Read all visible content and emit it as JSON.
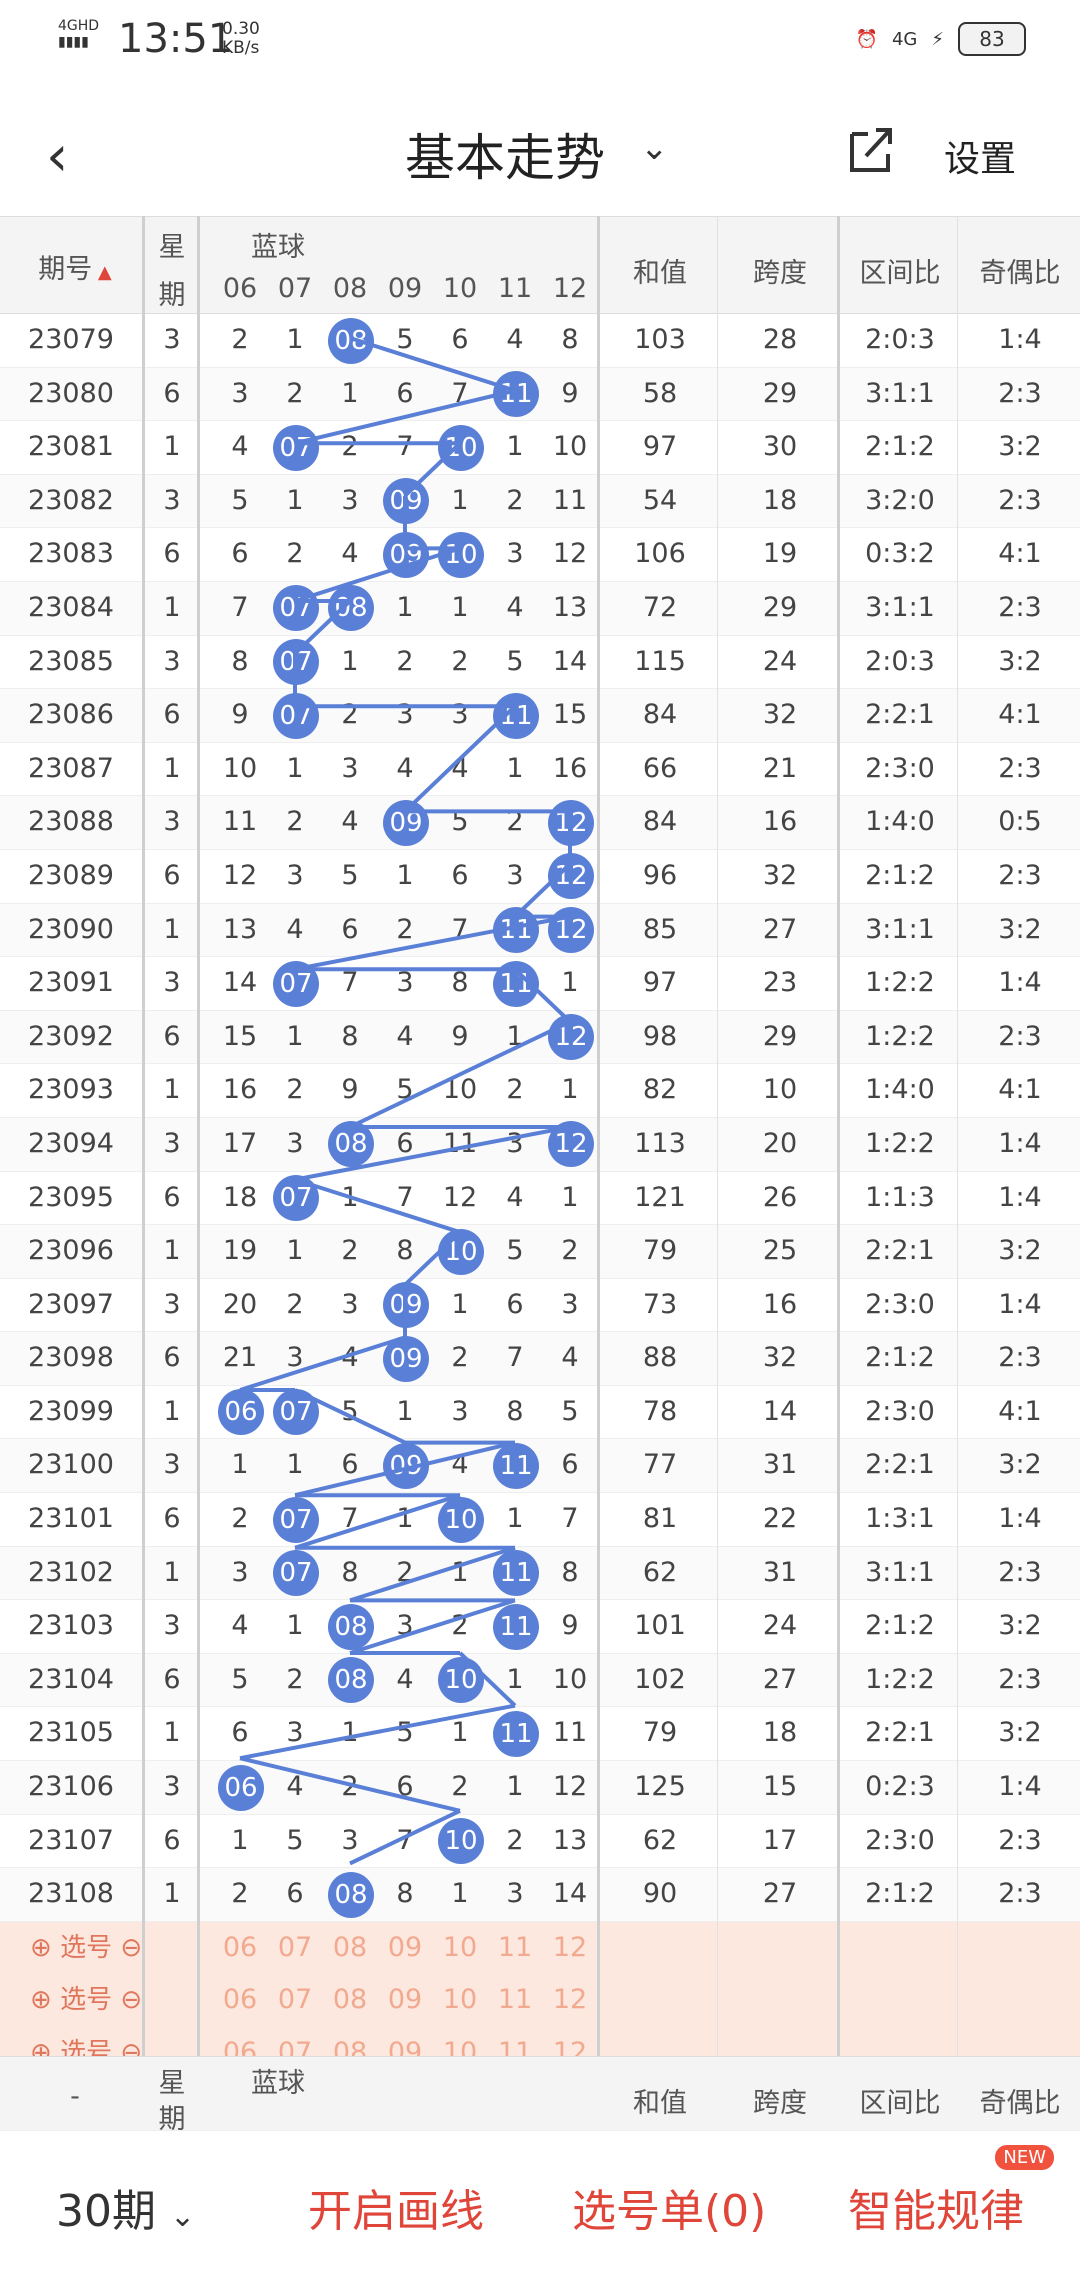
{
  "status": {
    "network": "4GHD",
    "time": "13:51",
    "speed": "0.30",
    "speed_unit": "KB/s",
    "battery": "83",
    "net2": "4G"
  },
  "header": {
    "title": "基本走势",
    "setting": "设置"
  },
  "columns": {
    "period": "期号",
    "week": [
      "星",
      "期"
    ],
    "blue": "蓝球",
    "blue_nums": [
      "06",
      "07",
      "08",
      "09",
      "10",
      "11",
      "12"
    ],
    "sum": "和值",
    "span": "跨度",
    "zone": "区间比",
    "oddeven": "奇偶比"
  },
  "rows": [
    {
      "p": "23079",
      "w": "3",
      "b": [
        "2",
        "1",
        "08",
        "5",
        "6",
        "4",
        "8"
      ],
      "hit": 2,
      "s": "103",
      "sp": "28",
      "z": "2:0:3",
      "oe": "1:4"
    },
    {
      "p": "23080",
      "w": "6",
      "b": [
        "3",
        "2",
        "1",
        "6",
        "7",
        "11",
        "9"
      ],
      "hit": 5,
      "s": "58",
      "sp": "29",
      "z": "3:1:1",
      "oe": "2:3"
    },
    {
      "p": "23081",
      "w": "1",
      "b": [
        "4",
        "07",
        "2",
        "7",
        "10",
        "1",
        "10"
      ],
      "hit": 1,
      "hit2": 4,
      "s": "97",
      "sp": "30",
      "z": "2:1:2",
      "oe": "3:2"
    },
    {
      "p": "23082",
      "w": "3",
      "b": [
        "5",
        "1",
        "3",
        "09",
        "1",
        "2",
        "11"
      ],
      "hit": 3,
      "s": "54",
      "sp": "18",
      "z": "3:2:0",
      "oe": "2:3"
    },
    {
      "p": "23083",
      "w": "6",
      "b": [
        "6",
        "2",
        "4",
        "09",
        "10",
        "3",
        "12"
      ],
      "hit": 3,
      "hit2": 4,
      "s": "106",
      "sp": "19",
      "z": "0:3:2",
      "oe": "4:1"
    },
    {
      "p": "23084",
      "w": "1",
      "b": [
        "7",
        "07",
        "08",
        "1",
        "1",
        "4",
        "13"
      ],
      "hit": 1,
      "hit2": 2,
      "s": "72",
      "sp": "29",
      "z": "3:1:1",
      "oe": "2:3"
    },
    {
      "p": "23085",
      "w": "3",
      "b": [
        "8",
        "07",
        "1",
        "2",
        "2",
        "5",
        "14"
      ],
      "hit": 1,
      "s": "115",
      "sp": "24",
      "z": "2:0:3",
      "oe": "3:2"
    },
    {
      "p": "23086",
      "w": "6",
      "b": [
        "9",
        "07",
        "2",
        "3",
        "3",
        "11",
        "15"
      ],
      "hit": 1,
      "hit2": 5,
      "s": "84",
      "sp": "32",
      "z": "2:2:1",
      "oe": "4:1"
    },
    {
      "p": "23087",
      "w": "1",
      "b": [
        "10",
        "1",
        "3",
        "4",
        "4",
        "1",
        "16"
      ],
      "hit": -1,
      "s": "66",
      "sp": "21",
      "z": "2:3:0",
      "oe": "2:3"
    },
    {
      "p": "23088",
      "w": "3",
      "b": [
        "11",
        "2",
        "4",
        "09",
        "5",
        "2",
        "12"
      ],
      "hit": 3,
      "hit2": 6,
      "s": "84",
      "sp": "16",
      "z": "1:4:0",
      "oe": "0:5"
    },
    {
      "p": "23089",
      "w": "6",
      "b": [
        "12",
        "3",
        "5",
        "1",
        "6",
        "3",
        "12"
      ],
      "hit": 6,
      "s": "96",
      "sp": "32",
      "z": "2:1:2",
      "oe": "2:3"
    },
    {
      "p": "23090",
      "w": "1",
      "b": [
        "13",
        "4",
        "6",
        "2",
        "7",
        "11",
        "12"
      ],
      "hit": 5,
      "hit2": 6,
      "s": "85",
      "sp": "27",
      "z": "3:1:1",
      "oe": "3:2"
    },
    {
      "p": "23091",
      "w": "3",
      "b": [
        "14",
        "07",
        "7",
        "3",
        "8",
        "11",
        "1"
      ],
      "hit": 1,
      "hit2": 5,
      "s": "97",
      "sp": "23",
      "z": "1:2:2",
      "oe": "1:4"
    },
    {
      "p": "23092",
      "w": "6",
      "b": [
        "15",
        "1",
        "8",
        "4",
        "9",
        "1",
        "12"
      ],
      "hit": 6,
      "s": "98",
      "sp": "29",
      "z": "1:2:2",
      "oe": "2:3"
    },
    {
      "p": "23093",
      "w": "1",
      "b": [
        "16",
        "2",
        "9",
        "5",
        "10",
        "2",
        "1"
      ],
      "hit": -1,
      "s": "82",
      "sp": "10",
      "z": "1:4:0",
      "oe": "4:1"
    },
    {
      "p": "23094",
      "w": "3",
      "b": [
        "17",
        "3",
        "08",
        "6",
        "11",
        "3",
        "12"
      ],
      "hit": 2,
      "hit2": 6,
      "s": "113",
      "sp": "20",
      "z": "1:2:2",
      "oe": "1:4"
    },
    {
      "p": "23095",
      "w": "6",
      "b": [
        "18",
        "07",
        "1",
        "7",
        "12",
        "4",
        "1"
      ],
      "hit": 1,
      "s": "121",
      "sp": "26",
      "z": "1:1:3",
      "oe": "1:4"
    },
    {
      "p": "23096",
      "w": "1",
      "b": [
        "19",
        "1",
        "2",
        "8",
        "10",
        "5",
        "2"
      ],
      "hit": 4,
      "s": "79",
      "sp": "25",
      "z": "2:2:1",
      "oe": "3:2"
    },
    {
      "p": "23097",
      "w": "3",
      "b": [
        "20",
        "2",
        "3",
        "09",
        "1",
        "6",
        "3"
      ],
      "hit": 3,
      "s": "73",
      "sp": "16",
      "z": "2:3:0",
      "oe": "1:4"
    },
    {
      "p": "23098",
      "w": "6",
      "b": [
        "21",
        "3",
        "4",
        "09",
        "2",
        "7",
        "4"
      ],
      "hit": 3,
      "s": "88",
      "sp": "32",
      "z": "2:1:2",
      "oe": "2:3"
    },
    {
      "p": "23099",
      "w": "1",
      "b": [
        "06",
        "07",
        "5",
        "1",
        "3",
        "8",
        "5"
      ],
      "hit": 0,
      "hit2": 1,
      "s": "78",
      "sp": "14",
      "z": "2:3:0",
      "oe": "4:1"
    },
    {
      "p": "23100",
      "w": "3",
      "b": [
        "1",
        "1",
        "6",
        "09",
        "4",
        "11",
        "6"
      ],
      "hit": 3,
      "hit2": 5,
      "s": "77",
      "sp": "31",
      "z": "2:2:1",
      "oe": "3:2"
    },
    {
      "p": "23101",
      "w": "6",
      "b": [
        "2",
        "07",
        "7",
        "1",
        "10",
        "1",
        "7"
      ],
      "hit": 1,
      "hit2": 4,
      "s": "81",
      "sp": "22",
      "z": "1:3:1",
      "oe": "1:4"
    },
    {
      "p": "23102",
      "w": "1",
      "b": [
        "3",
        "07",
        "8",
        "2",
        "1",
        "11",
        "8"
      ],
      "hit": 1,
      "hit2": 5,
      "s": "62",
      "sp": "31",
      "z": "3:1:1",
      "oe": "2:3"
    },
    {
      "p": "23103",
      "w": "3",
      "b": [
        "4",
        "1",
        "08",
        "3",
        "2",
        "11",
        "9"
      ],
      "hit": 2,
      "hit2": 5,
      "s": "101",
      "sp": "24",
      "z": "2:1:2",
      "oe": "3:2"
    },
    {
      "p": "23104",
      "w": "6",
      "b": [
        "5",
        "2",
        "08",
        "4",
        "10",
        "1",
        "10"
      ],
      "hit": 2,
      "hit2": 4,
      "s": "102",
      "sp": "27",
      "z": "1:2:2",
      "oe": "2:3"
    },
    {
      "p": "23105",
      "w": "1",
      "b": [
        "6",
        "3",
        "1",
        "5",
        "1",
        "11",
        "11"
      ],
      "hit": 5,
      "s": "79",
      "sp": "18",
      "z": "2:2:1",
      "oe": "3:2"
    },
    {
      "p": "23106",
      "w": "3",
      "b": [
        "06",
        "4",
        "2",
        "6",
        "2",
        "1",
        "12"
      ],
      "hit": 0,
      "s": "125",
      "sp": "15",
      "z": "0:2:3",
      "oe": "1:4"
    },
    {
      "p": "23107",
      "w": "6",
      "b": [
        "1",
        "5",
        "3",
        "7",
        "10",
        "2",
        "13"
      ],
      "hit": 4,
      "s": "62",
      "sp": "17",
      "z": "2:3:0",
      "oe": "2:3"
    },
    {
      "p": "23108",
      "w": "1",
      "b": [
        "2",
        "6",
        "08",
        "8",
        "1",
        "3",
        "14"
      ],
      "hit": 2,
      "s": "90",
      "sp": "27",
      "z": "2:1:2",
      "oe": "2:3"
    }
  ],
  "select": {
    "label": "选号",
    "nums": [
      "06",
      "07",
      "08",
      "09",
      "10",
      "11",
      "12"
    ]
  },
  "footer_head": {
    "period": "-",
    "week": [
      "星",
      "期"
    ],
    "blue": "蓝球",
    "sum": "和值",
    "span": "跨度",
    "zone": "区间比",
    "oddeven": "奇偶比"
  },
  "bottom": {
    "periods": "30期",
    "draw": "开启画线",
    "list": "选号单(0)",
    "smart": "智能规律",
    "new": "NEW"
  },
  "colors": {
    "ball": "#5a7fd6",
    "accent": "#e0453a",
    "select_bg": "#fde8df"
  }
}
